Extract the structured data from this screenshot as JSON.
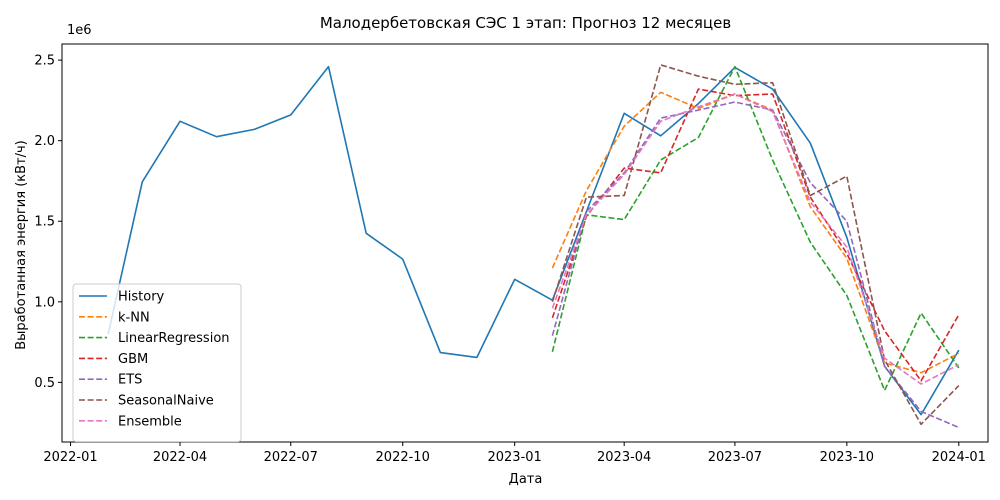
{
  "chart_data": {
    "type": "line",
    "title": "Малодербетовская СЭС 1 этап: Прогноз 12 месяцев",
    "xlabel": "Дата",
    "ylabel": "Выработанная энергия (кВт/ч)",
    "y_offset_label": "1e6",
    "xlim": [
      "2021-12-25",
      "2024-01-25"
    ],
    "ylim": [
      130000,
      2600000
    ],
    "x_ticks": [
      {
        "date": "2022-01-01",
        "label": "2022-01"
      },
      {
        "date": "2022-04-01",
        "label": "2022-04"
      },
      {
        "date": "2022-07-01",
        "label": "2022-07"
      },
      {
        "date": "2022-10-01",
        "label": "2022-10"
      },
      {
        "date": "2023-01-01",
        "label": "2023-01"
      },
      {
        "date": "2023-04-01",
        "label": "2023-04"
      },
      {
        "date": "2023-07-01",
        "label": "2023-07"
      },
      {
        "date": "2023-10-01",
        "label": "2023-10"
      },
      {
        "date": "2024-01-01",
        "label": "2024-01"
      }
    ],
    "y_ticks": [
      {
        "value": 500000,
        "label": "0.5"
      },
      {
        "value": 1000000,
        "label": "1.0"
      },
      {
        "value": 1500000,
        "label": "1.5"
      },
      {
        "value": 2000000,
        "label": "2.0"
      },
      {
        "value": 2500000,
        "label": "2.5"
      }
    ],
    "grid": false,
    "legend_position": "lower-left",
    "series": [
      {
        "name": "History",
        "color": "#1f77b4",
        "dash": "solid",
        "x": [
          "2022-02-01",
          "2022-03-01",
          "2022-04-01",
          "2022-05-01",
          "2022-06-01",
          "2022-07-01",
          "2022-08-01",
          "2022-09-01",
          "2022-10-01",
          "2022-11-01",
          "2022-12-01",
          "2023-01-01",
          "2023-02-01",
          "2023-03-01",
          "2023-04-01",
          "2023-05-01",
          "2023-06-01",
          "2023-07-01",
          "2023-08-01",
          "2023-09-01",
          "2023-10-01",
          "2023-11-01",
          "2023-12-01",
          "2024-01-01"
        ],
        "y": [
          800000,
          1745000,
          2120000,
          2025000,
          2070000,
          2160000,
          2460000,
          1425000,
          1265000,
          685000,
          655000,
          1140000,
          1010000,
          1560000,
          2170000,
          2030000,
          2230000,
          2455000,
          2320000,
          1985000,
          1400000,
          600000,
          300000,
          700000
        ]
      },
      {
        "name": "k-NN",
        "color": "#ff7f0e",
        "dash": "dashed",
        "x": [
          "2023-02-01",
          "2023-03-01",
          "2023-04-01",
          "2023-05-01",
          "2023-06-01",
          "2023-07-01",
          "2023-08-01",
          "2023-09-01",
          "2023-10-01",
          "2023-11-01",
          "2023-12-01",
          "2024-01-01"
        ],
        "y": [
          1210000,
          1690000,
          2090000,
          2300000,
          2200000,
          2290000,
          2190000,
          1590000,
          1270000,
          620000,
          560000,
          680000
        ]
      },
      {
        "name": "LinearRegression",
        "color": "#2ca02c",
        "dash": "dashed",
        "x": [
          "2023-02-01",
          "2023-03-01",
          "2023-04-01",
          "2023-05-01",
          "2023-06-01",
          "2023-07-01",
          "2023-08-01",
          "2023-09-01",
          "2023-10-01",
          "2023-11-01",
          "2023-12-01",
          "2024-01-01"
        ],
        "y": [
          690000,
          1540000,
          1510000,
          1880000,
          2020000,
          2460000,
          1880000,
          1370000,
          1040000,
          450000,
          930000,
          590000
        ]
      },
      {
        "name": "GBM",
        "color": "#d62728",
        "dash": "dashed",
        "x": [
          "2023-02-01",
          "2023-03-01",
          "2023-04-01",
          "2023-05-01",
          "2023-06-01",
          "2023-07-01",
          "2023-08-01",
          "2023-09-01",
          "2023-10-01",
          "2023-11-01",
          "2023-12-01",
          "2024-01-01"
        ],
        "y": [
          900000,
          1530000,
          1830000,
          1800000,
          2320000,
          2280000,
          2290000,
          1650000,
          1300000,
          820000,
          510000,
          920000
        ]
      },
      {
        "name": "ETS",
        "color": "#9467bd",
        "dash": "dashed",
        "x": [
          "2023-02-01",
          "2023-03-01",
          "2023-04-01",
          "2023-05-01",
          "2023-06-01",
          "2023-07-01",
          "2023-08-01",
          "2023-09-01",
          "2023-10-01",
          "2023-11-01",
          "2023-12-01",
          "2024-01-01"
        ],
        "y": [
          790000,
          1560000,
          1800000,
          2140000,
          2190000,
          2240000,
          2190000,
          1740000,
          1500000,
          600000,
          320000,
          220000
        ]
      },
      {
        "name": "SeasonalNaive",
        "color": "#8c564b",
        "dash": "dashed",
        "x": [
          "2023-02-01",
          "2023-03-01",
          "2023-04-01",
          "2023-05-01",
          "2023-06-01",
          "2023-07-01",
          "2023-08-01",
          "2023-09-01",
          "2023-10-01",
          "2023-11-01",
          "2023-12-01",
          "2024-01-01"
        ],
        "y": [
          1000000,
          1650000,
          1660000,
          2470000,
          2400000,
          2350000,
          2360000,
          1660000,
          1780000,
          640000,
          240000,
          480000
        ]
      },
      {
        "name": "Ensemble",
        "color": "#e377c2",
        "dash": "dashed",
        "x": [
          "2023-02-01",
          "2023-03-01",
          "2023-04-01",
          "2023-05-01",
          "2023-06-01",
          "2023-07-01",
          "2023-08-01",
          "2023-09-01",
          "2023-10-01",
          "2023-11-01",
          "2023-12-01",
          "2024-01-01"
        ],
        "y": [
          960000,
          1540000,
          1790000,
          2120000,
          2210000,
          2290000,
          2180000,
          1620000,
          1340000,
          650000,
          490000,
          610000
        ]
      }
    ]
  }
}
